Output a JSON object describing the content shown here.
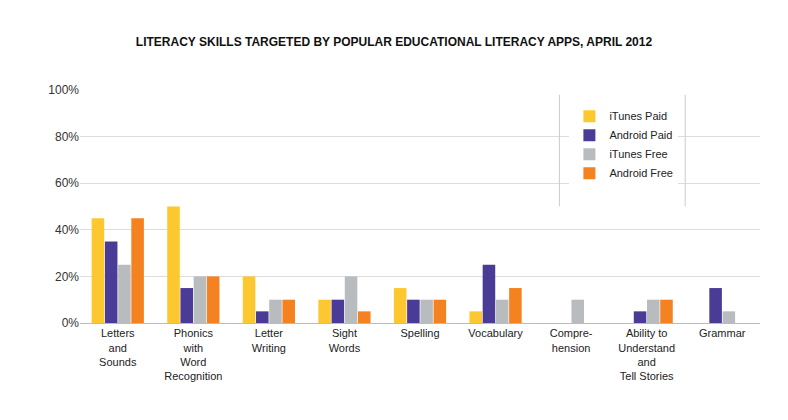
{
  "chart_data": {
    "type": "bar",
    "title": "LITERACY SKILLS TARGETED BY POPULAR EDUCATIONAL LITERACY APPS, APRIL 2012",
    "categories": [
      "Letters\nand\nSounds",
      "Phonics\nwith\nWord\nRecognition",
      "Letter\nWriting",
      "Sight\nWords",
      "Spelling",
      "Vocabulary",
      "Compre-\nhension",
      "Ability to\nUnderstand\nand\nTell Stories",
      "Grammar"
    ],
    "series": [
      {
        "name": "iTunes Paid",
        "color": "#FDC82F",
        "values": [
          45,
          50,
          20,
          10,
          15,
          5,
          0,
          0,
          0
        ]
      },
      {
        "name": "Android Paid",
        "color": "#4A3C96",
        "values": [
          35,
          15,
          5,
          10,
          10,
          25,
          0,
          5,
          15
        ]
      },
      {
        "name": "iTunes Free",
        "color": "#B9BCBF",
        "values": [
          25,
          20,
          10,
          20,
          10,
          10,
          10,
          10,
          5
        ]
      },
      {
        "name": "Android Free",
        "color": "#F58220",
        "values": [
          45,
          20,
          10,
          5,
          10,
          15,
          0,
          10,
          0
        ]
      }
    ],
    "ylim": [
      0,
      100
    ],
    "yticks": [
      {
        "value": 0,
        "label": "0%"
      },
      {
        "value": 20,
        "label": "20%"
      },
      {
        "value": 40,
        "label": "40%"
      },
      {
        "value": 60,
        "label": "60%"
      },
      {
        "value": 80,
        "label": "80%"
      },
      {
        "value": 100,
        "label": "100%"
      }
    ],
    "grid": true,
    "legend": "top right"
  }
}
